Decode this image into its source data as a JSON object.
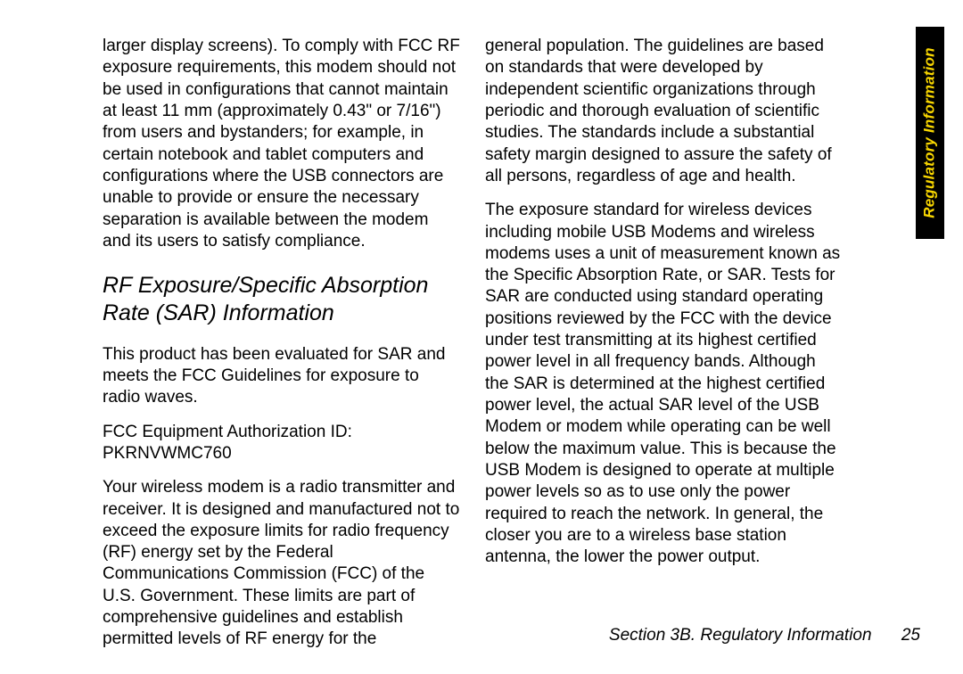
{
  "leftColumn": {
    "p1": "larger display screens). To comply with FCC RF exposure requirements, this modem should not be used in configurations that cannot maintain at least 11 mm (approximately 0.43\" or 7/16\") from users and bystanders; for example, in certain notebook and tablet computers and configurations where the USB connectors are unable to provide or ensure the necessary separation is available between the modem and its users to satisfy compliance.",
    "heading": "RF Exposure/Specific Absorption Rate (SAR) Information",
    "p2": "This product has been evaluated for SAR and meets the FCC Guidelines for exposure to radio waves.",
    "p3": "FCC Equipment Authorization ID: PKRNVWMC760",
    "p4": "Your wireless modem is a radio transmitter and receiver. It is designed and manufactured not to exceed the exposure limits for radio frequency (RF) energy set by the Federal Communications Commission (FCC) of the U.S. Government. These limits are part of comprehensive guidelines and establish permitted levels of RF energy for the"
  },
  "rightColumn": {
    "p1": "general population. The guidelines are based on standards that were developed by independent scientific organizations through periodic and thorough evaluation of scientific studies. The standards include a substantial safety margin designed to assure the safety of all persons, regardless of age and health.",
    "p2": "The exposure standard for wireless devices including mobile USB Modems and wireless modems uses a unit of measurement known as the Specific Absorption Rate, or SAR. Tests for SAR are conducted using standard operating positions reviewed by the FCC with the device under test transmitting at its highest certified power level in all frequency bands. Although the SAR is determined at the highest certified power level, the actual SAR level of the USB Modem or modem while operating can be well below the maximum value. This is because the USB Modem is designed to operate at multiple power levels so as to use only the power required to reach the network. In general, the closer you are to a wireless base station antenna, the lower the power output."
  },
  "sideTab": "Regulatory Information",
  "footer": {
    "section": "Section 3B. Regulatory Information",
    "page": "25"
  },
  "style": {
    "pageWidth": 1080,
    "pageHeight": 756,
    "bodyFontSize": 19,
    "bodyLineHeight": 1.28,
    "headingFontSize": 25,
    "sideTabBg": "#000000",
    "sideTabText": "#f8d600",
    "textColor": "#000000",
    "bgColor": "#ffffff"
  }
}
